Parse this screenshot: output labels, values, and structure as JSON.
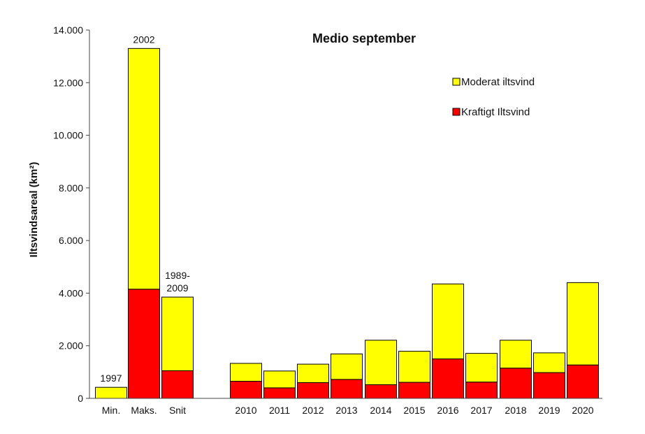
{
  "chart_data": {
    "type": "bar",
    "stacked": true,
    "title": "Medio september",
    "ylabel": "Iltsvindsareal (km²)",
    "xlabel": "",
    "ylim": [
      0,
      14000
    ],
    "yticks": [
      "0",
      "2.000",
      "4.000",
      "6.000",
      "8.000",
      "10.000",
      "12.000",
      "14.000"
    ],
    "ytick_values": [
      0,
      2000,
      4000,
      6000,
      8000,
      10000,
      12000,
      14000
    ],
    "grid": false,
    "legend_position": "top-right",
    "categories": [
      "Min.",
      "Maks.",
      "Snit",
      "2010",
      "2011",
      "2012",
      "2013",
      "2014",
      "2015",
      "2016",
      "2017",
      "2018",
      "2019",
      "2020"
    ],
    "category_notes": [
      "1997",
      "2002",
      "1989-\n2009",
      "",
      "",
      "",
      "",
      "",
      "",
      "",
      "",
      "",
      "",
      ""
    ],
    "series": [
      {
        "name": "Kraftigt Iltsvind",
        "color": "#ff0000",
        "values": [
          0,
          4150,
          1050,
          650,
          400,
          600,
          720,
          520,
          610,
          1500,
          620,
          1150,
          980,
          1270
        ]
      },
      {
        "name": "Moderat iltsvind",
        "color": "#ffff00",
        "values": [
          420,
          9150,
          2800,
          680,
          640,
          700,
          970,
          1690,
          1180,
          2850,
          1090,
          1060,
          750,
          3130
        ]
      }
    ],
    "legend_order": [
      "Moderat iltsvind",
      "Kraftigt Iltsvind"
    ]
  }
}
